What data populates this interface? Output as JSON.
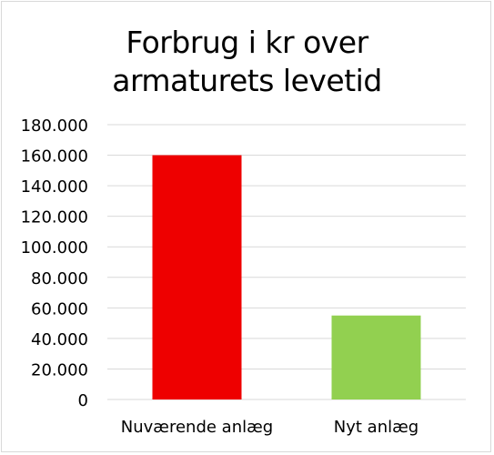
{
  "chart_data": {
    "type": "bar",
    "title_lines": [
      "Forbrug i kr over",
      "armaturets levetid"
    ],
    "categories": [
      "Nuværende anlæg",
      "Nyt anlæg"
    ],
    "values": [
      160000,
      55000
    ],
    "bar_colors": [
      "#ee0000",
      "#92d050"
    ],
    "ylim": [
      0,
      180000
    ],
    "yticks": [
      0,
      20000,
      40000,
      60000,
      80000,
      100000,
      120000,
      140000,
      160000,
      180000
    ],
    "ytick_labels": [
      "0",
      "20.000",
      "40.000",
      "60.000",
      "80.000",
      "100.000",
      "120.000",
      "140.000",
      "160.000",
      "180.000"
    ],
    "grid": true,
    "legend": "none",
    "colors": {
      "grid": "#d9d9d9",
      "text": "#000000"
    }
  }
}
